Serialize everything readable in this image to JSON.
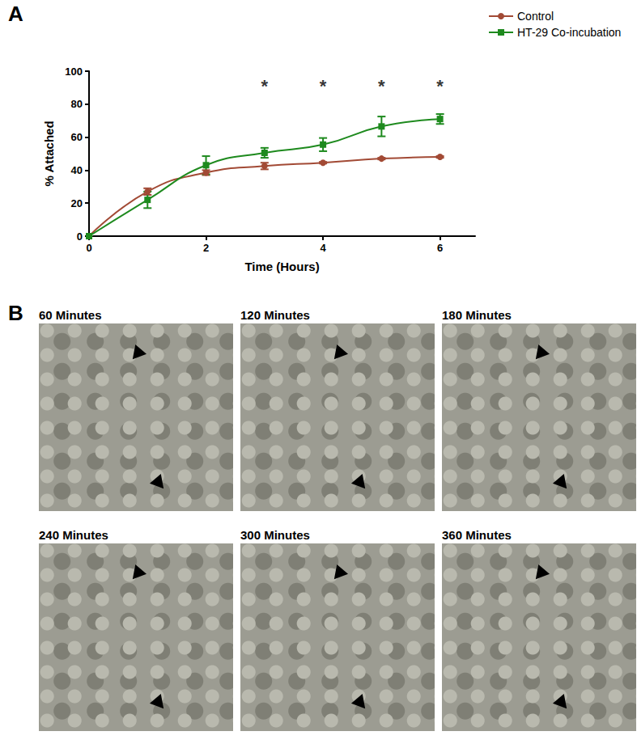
{
  "panel_labels": [
    "A",
    "B"
  ],
  "chart_data": {
    "type": "line",
    "x_label": "Time (Hours)",
    "y_label": "% Attached",
    "x": [
      0,
      1,
      2,
      3,
      4,
      5,
      6
    ],
    "series": [
      {
        "name": "Control",
        "color": "#a24a35",
        "marker": "circle",
        "values": [
          0,
          27,
          38.5,
          42.5,
          44.5,
          47,
          48
        ],
        "errors": [
          0,
          2,
          1.5,
          2,
          0.5,
          0.5,
          0.5
        ]
      },
      {
        "name": "HT-29 Co-incubation",
        "color": "#1e8a1e",
        "marker": "square",
        "values": [
          0,
          22,
          43,
          50.5,
          55.5,
          66.5,
          71
        ],
        "errors": [
          0,
          5,
          5.5,
          3,
          4,
          6,
          3
        ]
      }
    ],
    "xlim": [
      0,
      6.6
    ],
    "xticks": [
      0,
      2,
      4,
      6
    ],
    "ylim": [
      0,
      100
    ],
    "yticks": [
      0,
      20,
      40,
      60,
      80,
      100
    ],
    "grid": false,
    "legend": "upper right",
    "annotations": [
      {
        "x": 3,
        "y": 91,
        "text": "*"
      },
      {
        "x": 4,
        "y": 91,
        "text": "*"
      },
      {
        "x": 5,
        "y": 91,
        "text": "*"
      },
      {
        "x": 6,
        "y": 91,
        "text": "*"
      }
    ]
  },
  "images": {
    "titles": [
      "60 Minutes",
      "120 Minutes",
      "180 Minutes",
      "240 Minutes",
      "300 Minutes",
      "360 Minutes"
    ]
  }
}
